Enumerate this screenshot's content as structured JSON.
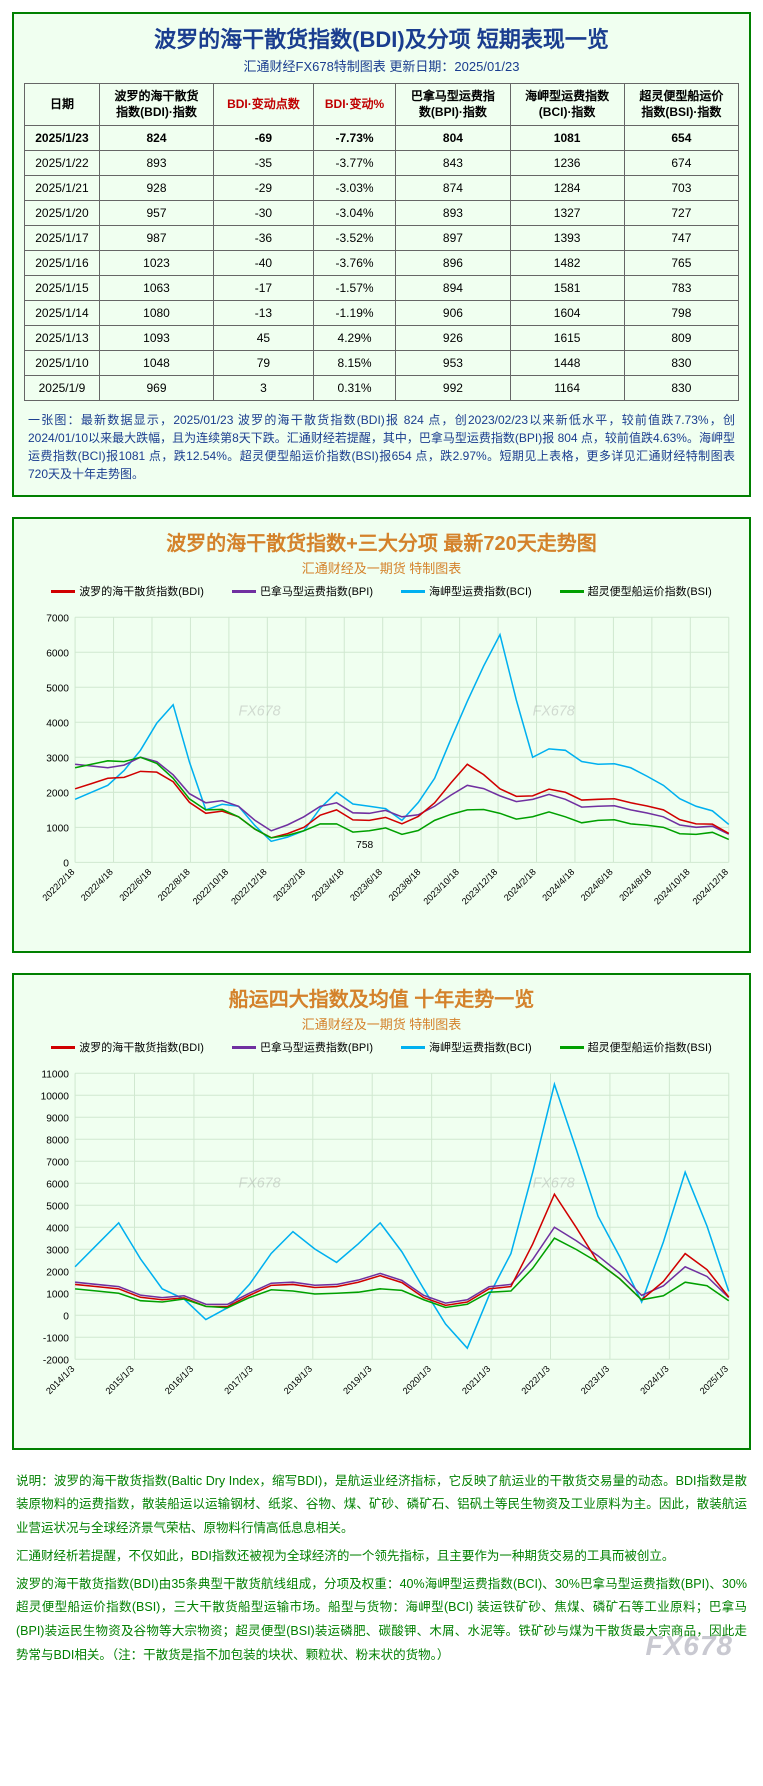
{
  "table_panel": {
    "title": "波罗的海干散货指数(BDI)及分项 短期表现一览",
    "subtitle": "汇通财经FX678特制图表   更新日期：2025/01/23",
    "headers": [
      {
        "text": "日期",
        "red": false
      },
      {
        "text": "波罗的海干散货\n指数(BDI)·指数",
        "red": false
      },
      {
        "text": "BDI·变动点数",
        "red": true
      },
      {
        "text": "BDI·变动%",
        "red": true
      },
      {
        "text": "巴拿马型运费指\n数(BPI)·指数",
        "red": false
      },
      {
        "text": "海岬型运费指数\n(BCI)·指数",
        "red": false
      },
      {
        "text": "超灵便型船运价\n指数(BSI)·指数",
        "red": false
      }
    ],
    "rows": [
      {
        "bold": true,
        "cells": [
          "2025/1/23",
          "824",
          "-69",
          "-7.73%",
          "804",
          "1081",
          "654"
        ]
      },
      {
        "bold": false,
        "cells": [
          "2025/1/22",
          "893",
          "-35",
          "-3.77%",
          "843",
          "1236",
          "674"
        ]
      },
      {
        "bold": false,
        "cells": [
          "2025/1/21",
          "928",
          "-29",
          "-3.03%",
          "874",
          "1284",
          "703"
        ]
      },
      {
        "bold": false,
        "cells": [
          "2025/1/20",
          "957",
          "-30",
          "-3.04%",
          "893",
          "1327",
          "727"
        ]
      },
      {
        "bold": false,
        "cells": [
          "2025/1/17",
          "987",
          "-36",
          "-3.52%",
          "897",
          "1393",
          "747"
        ]
      },
      {
        "bold": false,
        "cells": [
          "2025/1/16",
          "1023",
          "-40",
          "-3.76%",
          "896",
          "1482",
          "765"
        ]
      },
      {
        "bold": false,
        "cells": [
          "2025/1/15",
          "1063",
          "-17",
          "-1.57%",
          "894",
          "1581",
          "783"
        ]
      },
      {
        "bold": false,
        "cells": [
          "2025/1/14",
          "1080",
          "-13",
          "-1.19%",
          "906",
          "1604",
          "798"
        ]
      },
      {
        "bold": false,
        "cells": [
          "2025/1/13",
          "1093",
          "45",
          "4.29%",
          "926",
          "1615",
          "809"
        ]
      },
      {
        "bold": false,
        "cells": [
          "2025/1/10",
          "1048",
          "79",
          "8.15%",
          "953",
          "1448",
          "830"
        ]
      },
      {
        "bold": false,
        "cells": [
          "2025/1/9",
          "969",
          "3",
          "0.31%",
          "992",
          "1164",
          "830"
        ]
      }
    ],
    "caption": "一张图：最新数据显示，2025/01/23 波罗的海干散货指数(BDI)报 824 点，创2023/02/23以来新低水平，较前值跌7.73%，创2024/01/10以来最大跌幅，且为连续第8天下跌。汇通财经若提醒，其中，巴拿马型运费指数(BPI)报 804 点，较前值跌4.63%。海岬型运费指数(BCI)报1081 点，跌12.54%。超灵便型船运价指数(BSI)报654 点，跌2.97%。短期见上表格，更多详见汇通财经特制图表720天及十年走势图。"
  },
  "chart720": {
    "title": "波罗的海干散货指数+三大分项 最新720天走势图",
    "subtitle": "汇通财经及一期货 特制图表",
    "legend": [
      {
        "label": "波罗的海干散货指数(BDI)",
        "color": "#d00000"
      },
      {
        "label": "巴拿马型运费指数(BPI)",
        "color": "#7030a0"
      },
      {
        "label": "海岬型运费指数(BCI)",
        "color": "#00b0f0"
      },
      {
        "label": "超灵便型船运价指数(BSI)",
        "color": "#00a000"
      }
    ],
    "ymin": 0,
    "ymax": 7000,
    "ystep": 1000,
    "xlabels": [
      "2022/2/18",
      "2022/4/18",
      "2022/6/18",
      "2022/8/18",
      "2022/10/18",
      "2022/12/18",
      "2023/2/18",
      "2023/4/18",
      "2023/6/18",
      "2023/8/18",
      "2023/10/18",
      "2023/12/18",
      "2024/2/18",
      "2024/4/18",
      "2024/6/18",
      "2024/8/18",
      "2024/10/18",
      "2024/12/18"
    ],
    "annotation": "758",
    "watermark": "FX678",
    "grid_color": "#d0e8d0",
    "bg_color": "#f0fff0",
    "series": {
      "bdi": [
        2100,
        2400,
        2600,
        2300,
        1400,
        1300,
        700,
        1000,
        1500,
        1200,
        1100,
        1700,
        2800,
        2100,
        1900,
        2000,
        1800,
        1700,
        1500,
        1100,
        824
      ],
      "bpi": [
        2800,
        2700,
        3000,
        2500,
        1700,
        1600,
        900,
        1300,
        1700,
        1400,
        1300,
        1600,
        2200,
        1900,
        1800,
        1800,
        1600,
        1500,
        1300,
        1000,
        804
      ],
      "bci": [
        1800,
        2200,
        3200,
        4500,
        1500,
        1600,
        600,
        900,
        2000,
        1600,
        1200,
        2400,
        4600,
        6500,
        3000,
        3200,
        2800,
        2700,
        2200,
        1600,
        1081
      ],
      "bsi": [
        2700,
        2900,
        3000,
        2400,
        1500,
        1300,
        700,
        900,
        1100,
        900,
        800,
        1200,
        1500,
        1400,
        1300,
        1300,
        1200,
        1100,
        1000,
        800,
        654
      ]
    }
  },
  "chart10y": {
    "title": "船运四大指数及均值 十年走势一览",
    "subtitle": "汇通财经及一期货 特制图表",
    "legend": [
      {
        "label": "波罗的海干散货指数(BDI)",
        "color": "#d00000"
      },
      {
        "label": "巴拿马型运费指数(BPI)",
        "color": "#7030a0"
      },
      {
        "label": "海岬型运费指数(BCI)",
        "color": "#00b0f0"
      },
      {
        "label": "超灵便型船运价指数(BSI)",
        "color": "#00a000"
      }
    ],
    "ymin": -2000,
    "ymax": 11000,
    "ystep": 1000,
    "xlabels": [
      "2014/1/3",
      "2015/1/3",
      "2016/1/3",
      "2017/1/3",
      "2018/1/3",
      "2019/1/3",
      "2020/1/3",
      "2021/1/3",
      "2022/1/3",
      "2023/1/3",
      "2024/1/3",
      "2025/1/3"
    ],
    "watermark": "FX678",
    "grid_color": "#d0e8d0",
    "bg_color": "#f0fff0",
    "series": {
      "bdi": [
        1400,
        1200,
        700,
        400,
        900,
        1400,
        1300,
        1800,
        800,
        600,
        1300,
        5500,
        2400,
        700,
        2800,
        824
      ],
      "bpi": [
        1500,
        1300,
        800,
        500,
        1000,
        1500,
        1400,
        1900,
        900,
        700,
        1400,
        4000,
        2700,
        900,
        2200,
        804
      ],
      "bci": [
        2200,
        4200,
        1200,
        -200,
        1400,
        3800,
        2400,
        4200,
        1200,
        -1500,
        2800,
        10500,
        4500,
        600,
        6500,
        1081
      ],
      "bsi": [
        1200,
        1000,
        600,
        400,
        800,
        1100,
        1000,
        1200,
        700,
        500,
        1100,
        3500,
        2400,
        700,
        1500,
        654
      ]
    }
  },
  "footer": "说明：波罗的海干散货指数(Baltic Dry Index，缩写BDI)，是航运业经济指标，它反映了航运业的干散货交易量的动态。BDI指数是散装原物料的运费指数，散装船运以运输钢材、纸浆、谷物、煤、矿砂、磷矿石、铝矾土等民生物资及工业原料为主。因此，散装航运业营运状况与全球经济景气荣枯、原物料行情高低息息相关。\n汇通财经析若提醒，不仅如此，BDI指数还被视为全球经济的一个领先指标，且主要作为一种期货交易的工具而被创立。\n波罗的海干散货指数(BDI)由35条典型干散货航线组成，分项及权重：40%海岬型运费指数(BCI)、30%巴拿马型运费指数(BPI)、30%超灵便型船运价指数(BSI)，三大干散货船型运输市场。船型与货物：海岬型(BCI) 装运铁矿砂、焦煤、磷矿石等工业原料；巴拿马(BPI)装运民生物资及谷物等大宗物资；超灵便型(BSI)装运磷肥、碳酸钾、木屑、水泥等。铁矿砂与煤为干散货最大宗商品，因此走势常与BDI相关。（注：干散货是指不加包装的块状、颗粒状、粉末状的货物。）",
  "page_watermark": "FX678"
}
